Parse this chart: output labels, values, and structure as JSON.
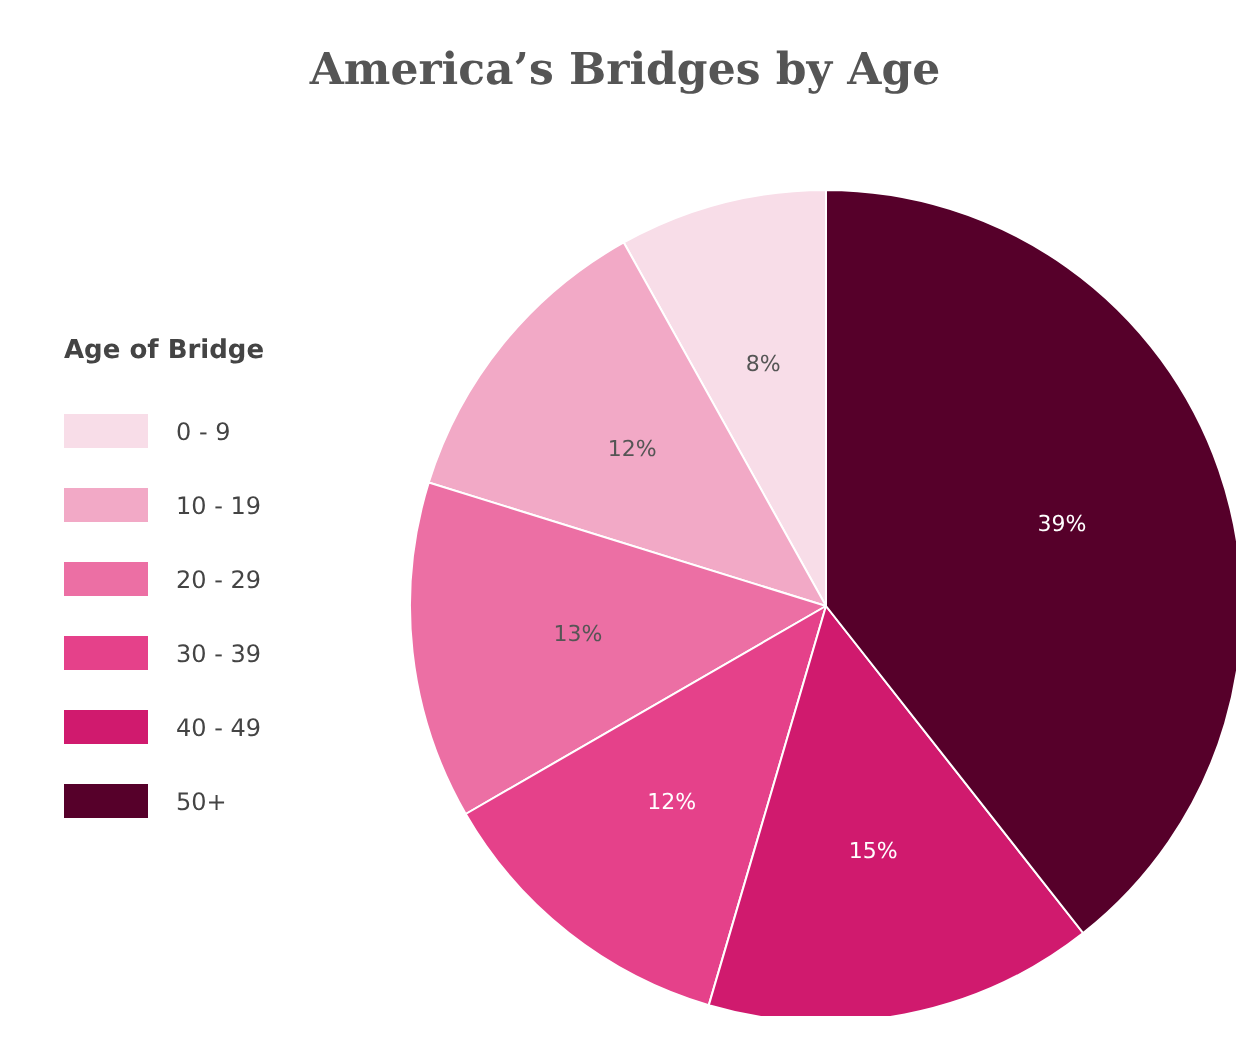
{
  "chart_data": {
    "type": "pie",
    "title": "America’s Bridges by Age",
    "legend_title": "Age of Bridge",
    "legend": "left",
    "categories": [
      "0 - 9",
      "10 - 19",
      "20 - 29",
      "30 - 39",
      "40 - 49",
      "50+"
    ],
    "values": [
      8,
      12,
      13,
      12,
      15,
      39
    ],
    "value_labels": [
      "8%",
      "12%",
      "13%",
      "12%",
      "15%",
      "39%"
    ],
    "colors": [
      "#f8dde8",
      "#f2a9c6",
      "#ec6fa4",
      "#e5418a",
      "#d01a6e",
      "#56002a"
    ]
  }
}
